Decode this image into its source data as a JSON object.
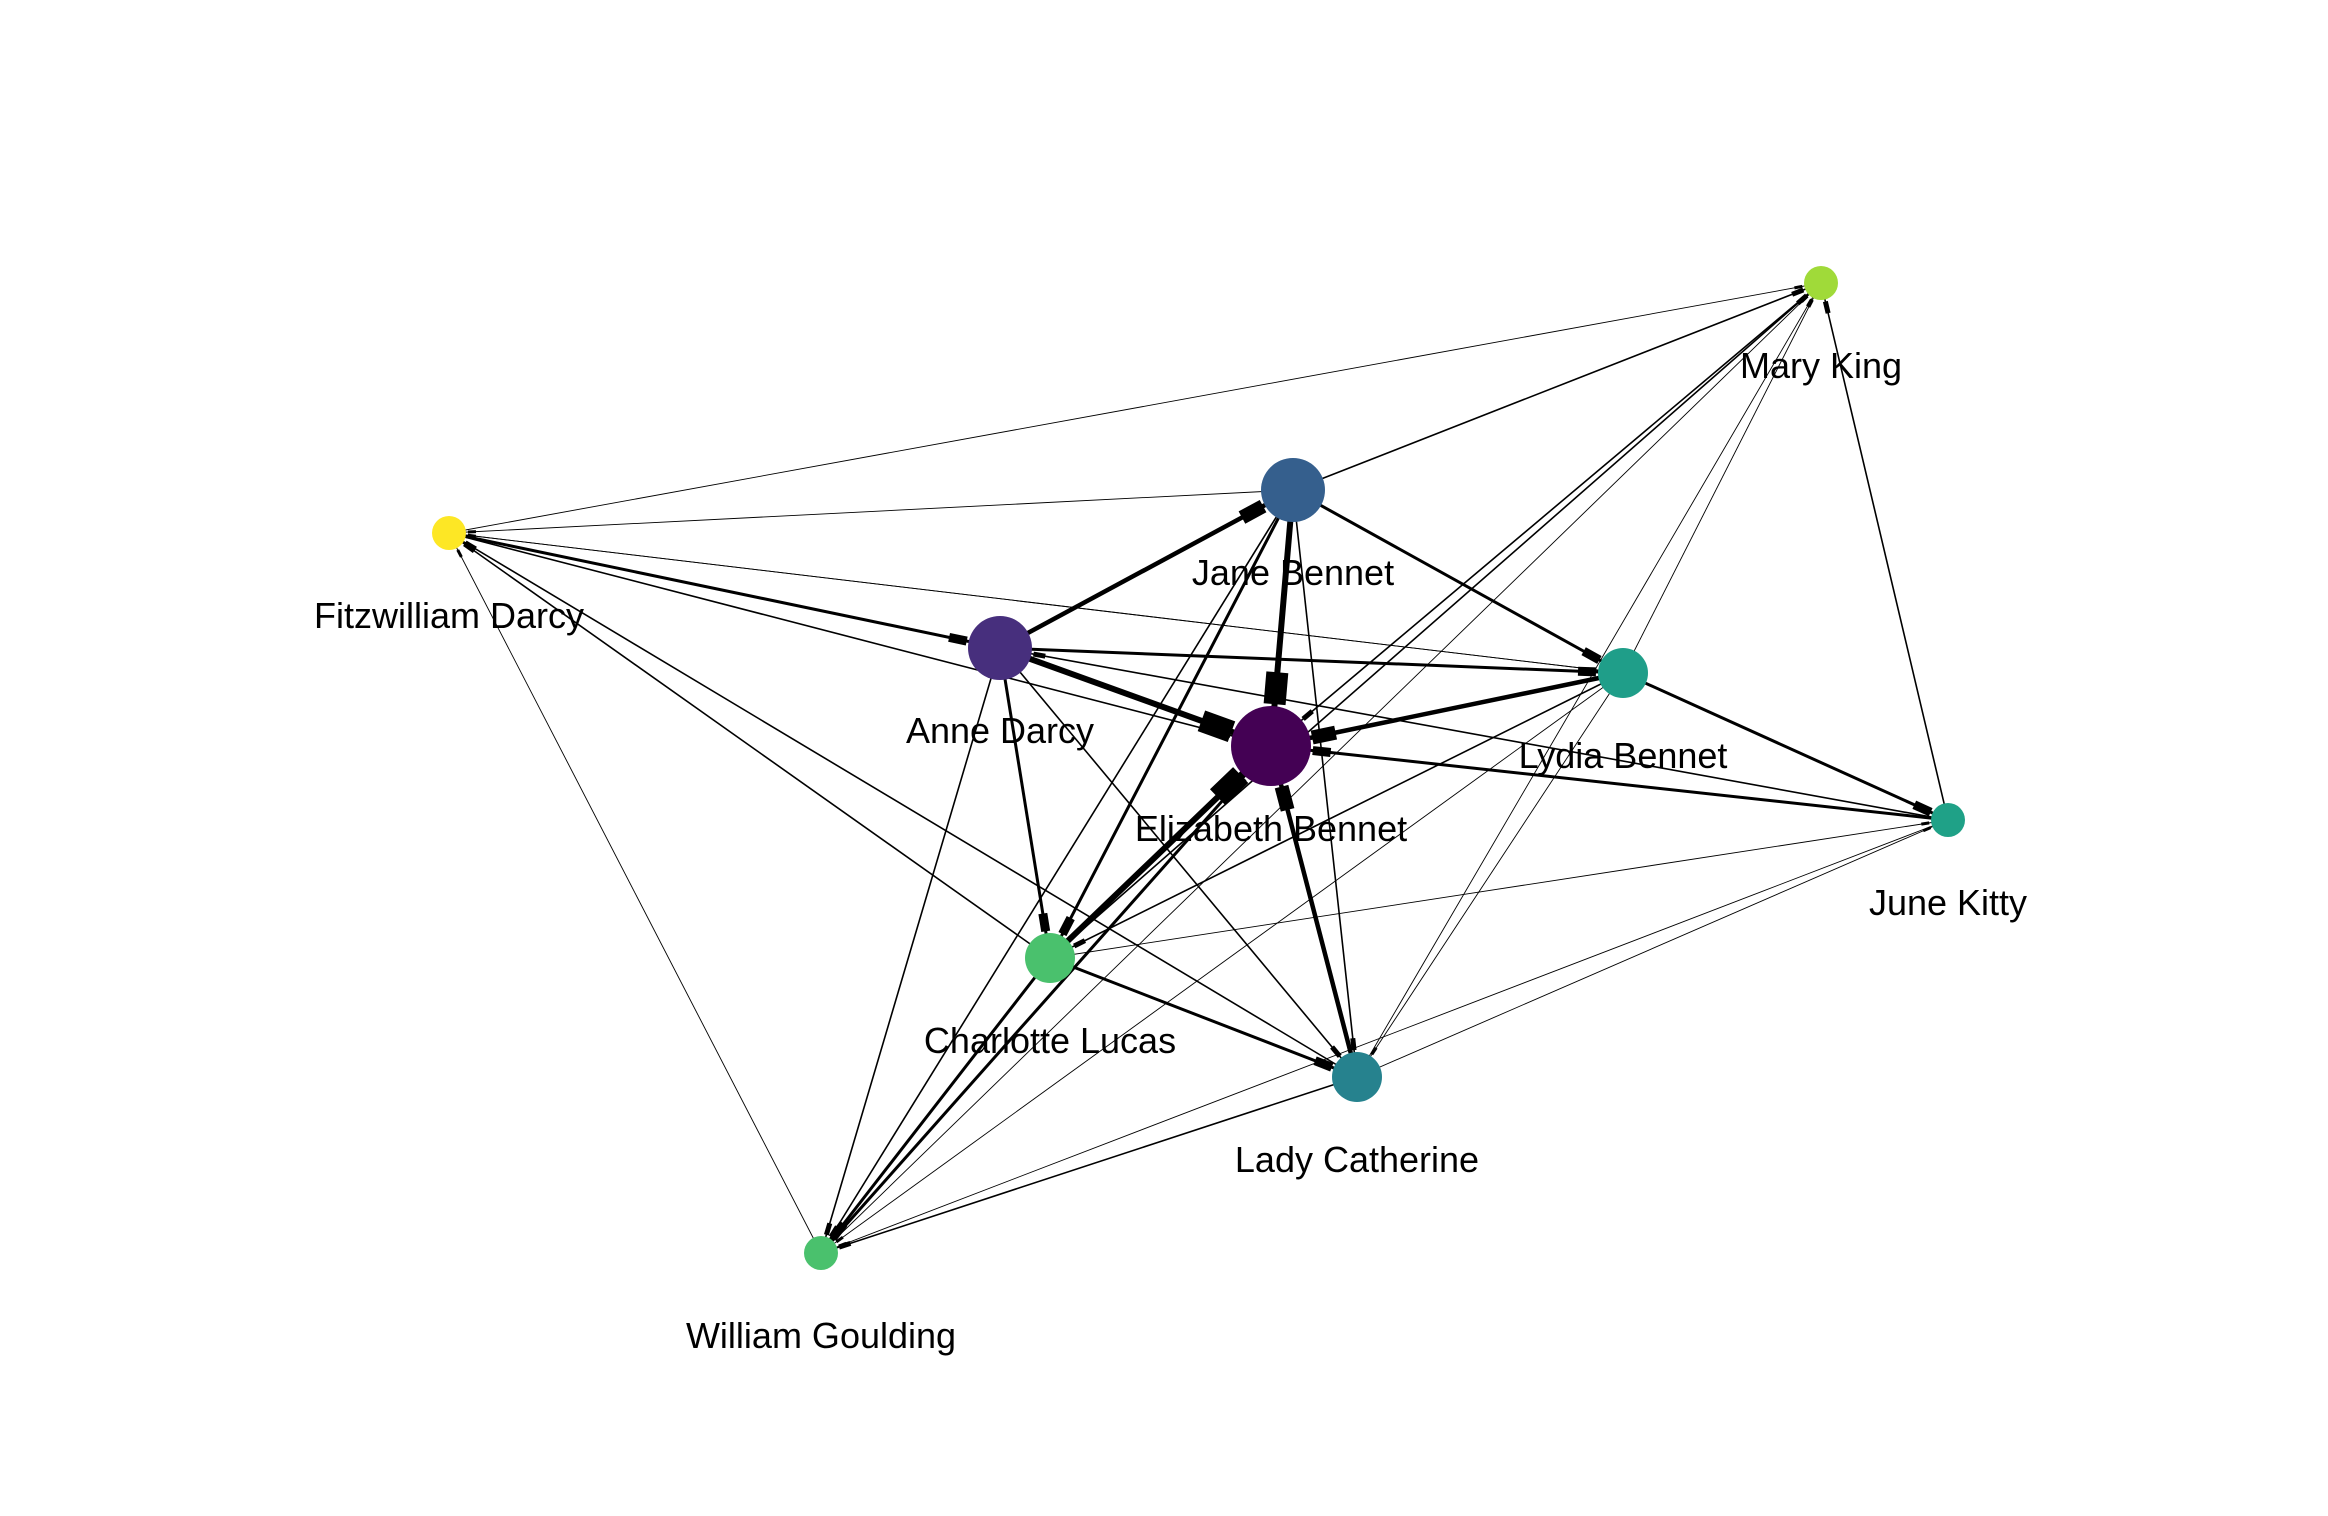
{
  "graph": {
    "nodes": [
      {
        "id": "elizabeth",
        "label": "Elizabeth Bennet",
        "color": "#440154",
        "size": "largest"
      },
      {
        "id": "anne",
        "label": "Anne Darcy",
        "color": "#472f7d",
        "size": "large"
      },
      {
        "id": "jane",
        "label": "Jane Bennet",
        "color": "#355f8d",
        "size": "large"
      },
      {
        "id": "lydia",
        "label": "Lydia Bennet",
        "color": "#1f9e89",
        "size": "medium"
      },
      {
        "id": "lady",
        "label": "Lady Catherine",
        "color": "#26828e",
        "size": "medium"
      },
      {
        "id": "charlotte",
        "label": "Charlotte Lucas",
        "color": "#4ac16d",
        "size": "medium"
      },
      {
        "id": "june",
        "label": "June Kitty",
        "color": "#1fa187",
        "size": "small"
      },
      {
        "id": "william",
        "label": "William Goulding",
        "color": "#4ac16d",
        "size": "small"
      },
      {
        "id": "mary",
        "label": "Mary King",
        "color": "#a0da39",
        "size": "small"
      },
      {
        "id": "fitz",
        "label": "Fitzwilliam Darcy",
        "color": "#fde725",
        "size": "small"
      }
    ],
    "edges": [
      {
        "source": "anne",
        "target": "elizabeth",
        "weight": "heavy"
      },
      {
        "source": "jane",
        "target": "elizabeth",
        "weight": "heavy"
      },
      {
        "source": "charlotte",
        "target": "elizabeth",
        "weight": "heavy"
      },
      {
        "source": "lydia",
        "target": "elizabeth",
        "weight": "strong"
      },
      {
        "source": "lady",
        "target": "elizabeth",
        "weight": "strong"
      },
      {
        "source": "anne",
        "target": "jane",
        "weight": "strong"
      },
      {
        "source": "june",
        "target": "elizabeth",
        "weight": "medium"
      },
      {
        "source": "william",
        "target": "elizabeth",
        "weight": "medium"
      },
      {
        "source": "mary",
        "target": "elizabeth",
        "weight": "light"
      },
      {
        "source": "fitz",
        "target": "elizabeth",
        "weight": "light"
      },
      {
        "source": "fitz",
        "target": "anne",
        "weight": "medium"
      },
      {
        "source": "anne",
        "target": "lydia",
        "weight": "medium"
      },
      {
        "source": "anne",
        "target": "charlotte",
        "weight": "medium"
      },
      {
        "source": "anne",
        "target": "lady",
        "weight": "light"
      },
      {
        "source": "anne",
        "target": "william",
        "weight": "light"
      },
      {
        "source": "jane",
        "target": "lydia",
        "weight": "medium"
      },
      {
        "source": "jane",
        "target": "charlotte",
        "weight": "medium"
      },
      {
        "source": "jane",
        "target": "lady",
        "weight": "light"
      },
      {
        "source": "jane",
        "target": "william",
        "weight": "light"
      },
      {
        "source": "jane",
        "target": "mary",
        "weight": "light"
      },
      {
        "source": "jane",
        "target": "fitz",
        "weight": "thin"
      },
      {
        "source": "lydia",
        "target": "june",
        "weight": "medium"
      },
      {
        "source": "lydia",
        "target": "charlotte",
        "weight": "light"
      },
      {
        "source": "lydia",
        "target": "lady",
        "weight": "thin"
      },
      {
        "source": "lydia",
        "target": "william",
        "weight": "thin"
      },
      {
        "source": "lydia",
        "target": "fitz",
        "weight": "thin"
      },
      {
        "source": "lydia",
        "target": "mary",
        "weight": "thin"
      },
      {
        "source": "charlotte",
        "target": "lady",
        "weight": "medium"
      },
      {
        "source": "charlotte",
        "target": "june",
        "weight": "thin"
      },
      {
        "source": "charlotte",
        "target": "william",
        "weight": "medium"
      },
      {
        "source": "charlotte",
        "target": "mary",
        "weight": "light"
      },
      {
        "source": "charlotte",
        "target": "fitz",
        "weight": "light"
      },
      {
        "source": "lady",
        "target": "june",
        "weight": "thin"
      },
      {
        "source": "lady",
        "target": "william",
        "weight": "light"
      },
      {
        "source": "lady",
        "target": "mary",
        "weight": "thin"
      },
      {
        "source": "lady",
        "target": "fitz",
        "weight": "light"
      },
      {
        "source": "june",
        "target": "mary",
        "weight": "light"
      },
      {
        "source": "june",
        "target": "william",
        "weight": "thin"
      },
      {
        "source": "june",
        "target": "anne",
        "weight": "light"
      },
      {
        "source": "william",
        "target": "mary",
        "weight": "thin"
      },
      {
        "source": "william",
        "target": "fitz",
        "weight": "thin"
      },
      {
        "source": "fitz",
        "target": "mary",
        "weight": "thin"
      },
      {
        "source": "fitz",
        "target": "lydia",
        "weight": "thin"
      }
    ]
  }
}
